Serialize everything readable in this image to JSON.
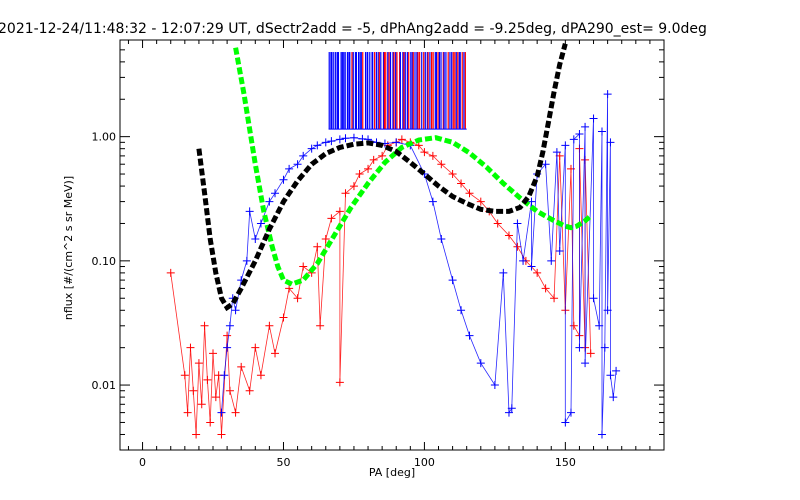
{
  "chart_data": {
    "type": "line",
    "title": "2021-12-24/11:48:32 - 12:07:29 UT, dSectr2add = -5, dPhAng2add = -9.25deg, dPA290_est=   9.0deg",
    "xlabel": "PA [deg]",
    "ylabel": "nflux [#/(cm^2 s sr MeV)]",
    "xlim": [
      -8,
      185
    ],
    "ylim": [
      0.003,
      6.0
    ],
    "yscale": "log",
    "x_ticks": [
      0,
      50,
      100,
      150
    ],
    "x_tick_labels": [
      "0",
      "50",
      "100",
      "150"
    ],
    "y_ticks": [
      0.01,
      0.1,
      1.0
    ],
    "y_tick_labels": [
      "0.01",
      "0.10",
      "1.00"
    ],
    "grid": false,
    "legend": "none",
    "colors": {
      "red_series": "#ff0000",
      "blue_series": "#0000ff",
      "black_fit": "#000000",
      "green_fit": "#00ff00"
    },
    "series": [
      {
        "color": "green",
        "style": "thick dashed",
        "x": [
          33,
          36,
          40,
          43,
          46,
          48,
          50,
          53,
          57,
          62,
          68,
          74,
          80,
          86,
          92,
          98,
          104,
          110,
          116,
          122,
          128,
          134,
          140,
          146,
          150,
          152,
          154,
          157,
          159
        ],
        "y": [
          5.2,
          2.2,
          0.6,
          0.25,
          0.13,
          0.09,
          0.07,
          0.065,
          0.07,
          0.095,
          0.16,
          0.27,
          0.42,
          0.62,
          0.82,
          0.94,
          0.98,
          0.9,
          0.74,
          0.57,
          0.42,
          0.32,
          0.25,
          0.21,
          0.19,
          0.185,
          0.19,
          0.21,
          0.23
        ]
      },
      {
        "color": "black",
        "style": "thick dashed",
        "x": [
          20,
          22,
          24,
          26,
          28,
          30,
          32,
          35,
          40,
          45,
          50,
          55,
          60,
          65,
          70,
          75,
          80,
          85,
          90,
          95,
          100,
          105,
          110,
          115,
          120,
          125,
          130,
          134,
          137,
          140,
          142,
          144,
          146,
          148,
          150
        ],
        "y": [
          0.8,
          0.35,
          0.15,
          0.08,
          0.05,
          0.042,
          0.045,
          0.06,
          0.1,
          0.18,
          0.3,
          0.44,
          0.6,
          0.73,
          0.82,
          0.87,
          0.89,
          0.85,
          0.76,
          0.62,
          0.5,
          0.4,
          0.33,
          0.29,
          0.26,
          0.25,
          0.25,
          0.27,
          0.33,
          0.48,
          0.75,
          1.3,
          2.3,
          3.8,
          5.6
        ]
      }
    ],
    "red_points": [
      [
        10,
        0.08
      ],
      [
        15,
        0.012
      ],
      [
        16,
        0.006
      ],
      [
        17,
        0.02
      ],
      [
        18,
        0.009
      ],
      [
        19,
        0.004
      ],
      [
        20,
        0.015
      ],
      [
        21,
        0.007
      ],
      [
        22,
        0.03
      ],
      [
        23,
        0.011
      ],
      [
        24,
        0.005
      ],
      [
        25,
        0.018
      ],
      [
        26,
        0.008
      ],
      [
        27,
        0.012
      ],
      [
        28,
        0.004
      ],
      [
        30,
        0.025
      ],
      [
        31,
        0.009
      ],
      [
        33,
        0.006
      ],
      [
        35,
        0.014
      ],
      [
        38,
        0.009
      ],
      [
        40,
        0.02
      ],
      [
        42,
        0.012
      ],
      [
        45,
        0.03
      ],
      [
        47,
        0.018
      ],
      [
        50,
        0.035
      ],
      [
        52,
        0.06
      ],
      [
        55,
        0.05
      ],
      [
        57,
        0.09
      ],
      [
        60,
        0.08
      ],
      [
        62,
        0.13
      ],
      [
        65,
        0.15
      ],
      [
        67,
        0.22
      ],
      [
        70,
        0.25
      ],
      [
        72,
        0.35
      ],
      [
        75,
        0.4
      ],
      [
        77,
        0.5
      ],
      [
        80,
        0.55
      ],
      [
        82,
        0.65
      ],
      [
        85,
        0.7
      ],
      [
        87,
        0.85
      ],
      [
        90,
        0.9
      ],
      [
        92,
        0.95
      ],
      [
        95,
        0.9
      ],
      [
        98,
        0.85
      ],
      [
        100,
        0.75
      ],
      [
        103,
        0.7
      ],
      [
        106,
        0.6
      ],
      [
        110,
        0.5
      ],
      [
        113,
        0.42
      ],
      [
        116,
        0.35
      ],
      [
        120,
        0.3
      ],
      [
        123,
        0.25
      ],
      [
        126,
        0.2
      ],
      [
        130,
        0.16
      ],
      [
        133,
        0.13
      ],
      [
        136,
        0.1
      ],
      [
        140,
        0.08
      ],
      [
        143,
        0.06
      ],
      [
        146,
        0.05
      ],
      [
        150,
        0.04
      ],
      [
        153,
        0.03
      ],
      [
        155,
        0.025
      ],
      [
        157,
        0.02
      ],
      [
        159,
        0.018
      ],
      [
        148,
        0.7
      ],
      [
        152,
        0.55
      ],
      [
        155,
        0.8
      ],
      [
        157,
        0.65
      ],
      [
        70,
        0.0105
      ],
      [
        63,
        0.03
      ]
    ],
    "blue_points": [
      [
        28,
        0.006
      ],
      [
        29,
        0.012
      ],
      [
        30,
        0.02
      ],
      [
        31,
        0.03
      ],
      [
        32,
        0.05
      ],
      [
        33,
        0.04
      ],
      [
        35,
        0.07
      ],
      [
        37,
        0.1
      ],
      [
        38,
        0.25
      ],
      [
        40,
        0.15
      ],
      [
        42,
        0.2
      ],
      [
        45,
        0.3
      ],
      [
        47,
        0.35
      ],
      [
        50,
        0.45
      ],
      [
        52,
        0.55
      ],
      [
        55,
        0.6
      ],
      [
        57,
        0.7
      ],
      [
        60,
        0.8
      ],
      [
        62,
        0.85
      ],
      [
        65,
        0.9
      ],
      [
        67,
        0.92
      ],
      [
        70,
        0.95
      ],
      [
        72,
        0.97
      ],
      [
        75,
        0.98
      ],
      [
        78,
        0.96
      ],
      [
        80,
        0.95
      ],
      [
        83,
        0.9
      ],
      [
        86,
        0.88
      ],
      [
        90,
        0.9
      ],
      [
        95,
        0.85
      ],
      [
        100,
        0.5
      ],
      [
        103,
        0.3
      ],
      [
        106,
        0.15
      ],
      [
        110,
        0.07
      ],
      [
        113,
        0.04
      ],
      [
        116,
        0.025
      ],
      [
        120,
        0.015
      ],
      [
        125,
        0.01
      ],
      [
        130,
        0.006
      ],
      [
        131,
        0.0065
      ],
      [
        135,
        0.1
      ],
      [
        138,
        0.3
      ],
      [
        140,
        0.5
      ],
      [
        143,
        0.6
      ],
      [
        147,
        0.75
      ],
      [
        150,
        0.85
      ],
      [
        153,
        0.95
      ],
      [
        155,
        1.05
      ],
      [
        157,
        1.2
      ],
      [
        160,
        1.4
      ],
      [
        163,
        1.1
      ],
      [
        165,
        2.2
      ],
      [
        166,
        0.9
      ],
      [
        160,
        0.05
      ],
      [
        162,
        0.03
      ],
      [
        164,
        0.02
      ],
      [
        165,
        0.04
      ],
      [
        166,
        0.012
      ],
      [
        167,
        0.008
      ],
      [
        168,
        0.013
      ],
      [
        163,
        0.004
      ],
      [
        150,
        0.005
      ],
      [
        152,
        0.006
      ],
      [
        155,
        0.02
      ],
      [
        157,
        0.015
      ],
      [
        145,
        0.1
      ],
      [
        148,
        0.12
      ],
      [
        138,
        0.09
      ],
      [
        133,
        0.2
      ],
      [
        128,
        0.08
      ]
    ],
    "vertical_sector_lines": {
      "x_range": [
        66,
        115
      ],
      "y_top": 4.8,
      "y_bottom": 1.15,
      "count_blue": 60,
      "count_red": 25
    }
  }
}
